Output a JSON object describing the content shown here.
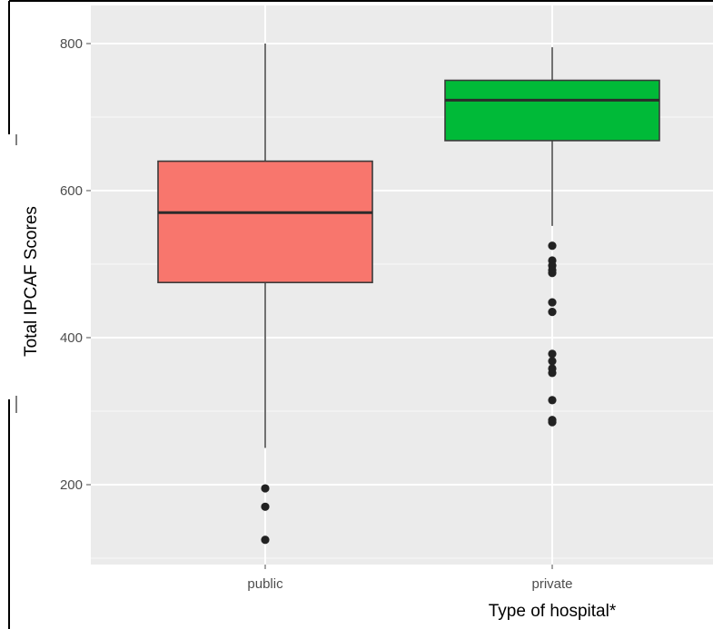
{
  "chart_data": {
    "type": "box",
    "xlabel": "Type of hospital*",
    "ylabel": "Total IPCAF Scores",
    "categories": [
      "public",
      "private"
    ],
    "ylim": [
      90,
      830
    ],
    "yticks": [
      200,
      400,
      600,
      800
    ],
    "grid": true,
    "background": "#ebebeb",
    "boxes": [
      {
        "category": "public",
        "color": "#f8766d",
        "whisker_low": 250,
        "q1": 475,
        "median": 570,
        "q3": 640,
        "whisker_high": 800,
        "outliers": [
          195,
          170,
          125
        ]
      },
      {
        "category": "private",
        "color": "#00ba38",
        "whisker_low": 552,
        "q1": 668,
        "median": 723,
        "q3": 750,
        "whisker_high": 795,
        "outliers": [
          525,
          505,
          498,
          492,
          488,
          448,
          435,
          378,
          368,
          358,
          352,
          315,
          288,
          285
        ]
      }
    ]
  }
}
